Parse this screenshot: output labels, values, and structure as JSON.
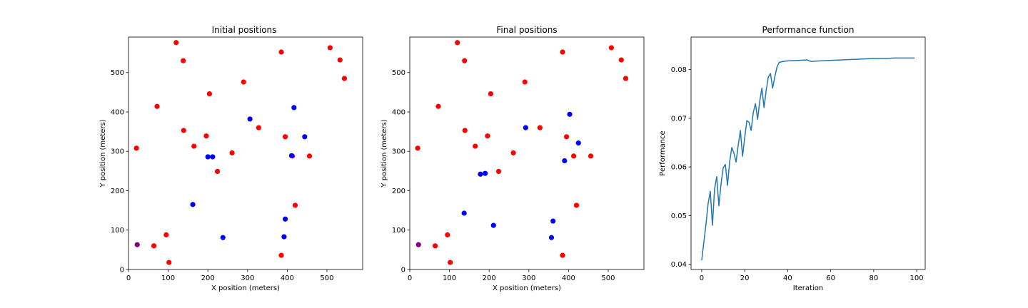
{
  "chart_data": [
    {
      "type": "scatter",
      "title": "Initial positions",
      "xlabel": "X position (meters)",
      "ylabel": "Y position (meters)",
      "xlim": [
        0,
        590
      ],
      "ylim": [
        0,
        590
      ],
      "xticks": [
        0,
        100,
        200,
        300,
        400,
        500
      ],
      "yticks": [
        0,
        100,
        200,
        300,
        400,
        500
      ],
      "series": [
        {
          "color": "#ff0000",
          "points": [
            [
              120,
              576
            ],
            [
              508,
              563
            ],
            [
              138,
              530
            ],
            [
              533,
              532
            ],
            [
              385,
              552
            ],
            [
              544,
              485
            ],
            [
              72,
              414
            ],
            [
              290,
              476
            ],
            [
              204,
              446
            ],
            [
              20,
              308
            ],
            [
              139,
              353
            ],
            [
              196,
              339
            ],
            [
              165,
              313
            ],
            [
              261,
              296
            ],
            [
              224,
              249
            ],
            [
              328,
              360
            ],
            [
              395,
              337
            ],
            [
              413,
              288
            ],
            [
              456,
              288
            ],
            [
              420,
              163
            ],
            [
              95,
              88
            ],
            [
              64,
              60
            ],
            [
              102,
              18
            ],
            [
              385,
              36
            ]
          ]
        },
        {
          "color": "#0000ff",
          "points": [
            [
              306,
              382
            ],
            [
              417,
              411
            ],
            [
              444,
              337
            ],
            [
              200,
              286
            ],
            [
              212,
              286
            ],
            [
              411,
              289
            ],
            [
              162,
              165
            ],
            [
              395,
              128
            ],
            [
              238,
              81
            ],
            [
              392,
              83
            ]
          ]
        },
        {
          "color": "#800080",
          "points": [
            [
              22,
              63
            ]
          ]
        }
      ]
    },
    {
      "type": "scatter",
      "title": "Final positions",
      "xlabel": "X position (meters)",
      "ylabel": "Y position (meters)",
      "xlim": [
        0,
        590
      ],
      "ylim": [
        0,
        590
      ],
      "xticks": [
        0,
        100,
        200,
        300,
        400,
        500
      ],
      "yticks": [
        0,
        100,
        200,
        300,
        400,
        500
      ],
      "series": [
        {
          "color": "#ff0000",
          "points": [
            [
              120,
              576
            ],
            [
              508,
              563
            ],
            [
              138,
              530
            ],
            [
              533,
              532
            ],
            [
              385,
              552
            ],
            [
              544,
              485
            ],
            [
              72,
              414
            ],
            [
              290,
              476
            ],
            [
              204,
              446
            ],
            [
              20,
              308
            ],
            [
              139,
              353
            ],
            [
              196,
              339
            ],
            [
              165,
              313
            ],
            [
              261,
              296
            ],
            [
              224,
              249
            ],
            [
              328,
              360
            ],
            [
              395,
              337
            ],
            [
              413,
              288
            ],
            [
              456,
              288
            ],
            [
              420,
              163
            ],
            [
              95,
              88
            ],
            [
              64,
              60
            ],
            [
              102,
              18
            ],
            [
              385,
              36
            ]
          ]
        },
        {
          "color": "#0000ff",
          "points": [
            [
              403,
              394
            ],
            [
              292,
              360
            ],
            [
              425,
              321
            ],
            [
              390,
              276
            ],
            [
              178,
              242
            ],
            [
              190,
              244
            ],
            [
              137,
              143
            ],
            [
              361,
              123
            ],
            [
              211,
              112
            ],
            [
              357,
              81
            ]
          ]
        },
        {
          "color": "#800080",
          "points": [
            [
              22,
              63
            ]
          ]
        }
      ]
    },
    {
      "type": "line",
      "title": "Performance function",
      "xlabel": "Iteration",
      "ylabel": "Performance",
      "xlim": [
        -4.95,
        103.95
      ],
      "ylim": [
        0.0389,
        0.0867
      ],
      "xticks": [
        0,
        20,
        40,
        60,
        80,
        100
      ],
      "yticks": [
        0.04,
        0.05,
        0.06,
        0.07,
        0.08
      ],
      "series": [
        {
          "color": "#1f77b4",
          "x": [
            0,
            1,
            2,
            3,
            4,
            5,
            6,
            7,
            8,
            9,
            10,
            11,
            12,
            13,
            14,
            15,
            16,
            17,
            18,
            19,
            20,
            21,
            22,
            23,
            24,
            25,
            26,
            27,
            28,
            29,
            30,
            31,
            32,
            33,
            34,
            35,
            36,
            37,
            38,
            40,
            45,
            49,
            50,
            51,
            55,
            60,
            65,
            70,
            75,
            80,
            85,
            90,
            95,
            99
          ],
          "y": [
            0.0408,
            0.0445,
            0.0482,
            0.0525,
            0.055,
            0.048,
            0.0555,
            0.058,
            0.052,
            0.0565,
            0.0598,
            0.0605,
            0.0562,
            0.061,
            0.064,
            0.0628,
            0.061,
            0.0645,
            0.0675,
            0.0622,
            0.066,
            0.0695,
            0.0692,
            0.0675,
            0.0712,
            0.073,
            0.0698,
            0.0735,
            0.0762,
            0.0722,
            0.0758,
            0.0785,
            0.0792,
            0.0762,
            0.0785,
            0.0805,
            0.0815,
            0.0816,
            0.0817,
            0.0818,
            0.0819,
            0.082,
            0.0818,
            0.0817,
            0.0818,
            0.0819,
            0.082,
            0.0821,
            0.0822,
            0.0823,
            0.0823,
            0.0824,
            0.0824,
            0.0824
          ]
        }
      ]
    }
  ]
}
